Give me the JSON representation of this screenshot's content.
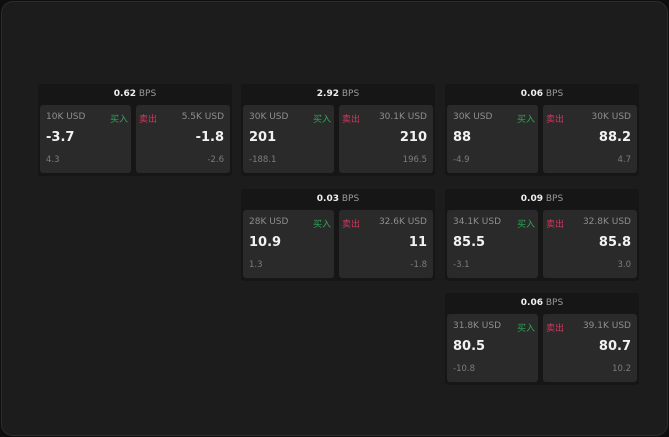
{
  "colors": {
    "buy": "#2fa65a",
    "sell": "#d2385e"
  },
  "labels": {
    "buy": "买入",
    "sell": "卖出",
    "unit": "BPS"
  },
  "widgets": [
    {
      "spread": "0.62",
      "bid_size": "10K USD",
      "bid": "-3.7",
      "bid_change": "4.3",
      "ask_size": "5.5K USD",
      "ask": "-1.8",
      "ask_change": "-2.6"
    },
    {
      "spread": "2.92",
      "bid_size": "30K USD",
      "bid": "201",
      "bid_change": "-188.1",
      "ask_size": "30.1K USD",
      "ask": "210",
      "ask_change": "196.5"
    },
    {
      "spread": "0.06",
      "bid_size": "30K USD",
      "bid": "88",
      "bid_change": "-4.9",
      "ask_size": "30K USD",
      "ask": "88.2",
      "ask_change": "4.7"
    },
    {
      "spread": "0.03",
      "bid_size": "28K USD",
      "bid": "10.9",
      "bid_change": "1.3",
      "ask_size": "32.6K USD",
      "ask": "11",
      "ask_change": "-1.8"
    },
    {
      "spread": "0.09",
      "bid_size": "34.1K USD",
      "bid": "85.5",
      "bid_change": "-3.1",
      "ask_size": "32.8K USD",
      "ask": "85.8",
      "ask_change": "3.0"
    },
    {
      "spread": "0.06",
      "bid_size": "31.8K USD",
      "bid": "80.5",
      "bid_change": "-10.8",
      "ask_size": "39.1K USD",
      "ask": "80.7",
      "ask_change": "10.2"
    }
  ]
}
